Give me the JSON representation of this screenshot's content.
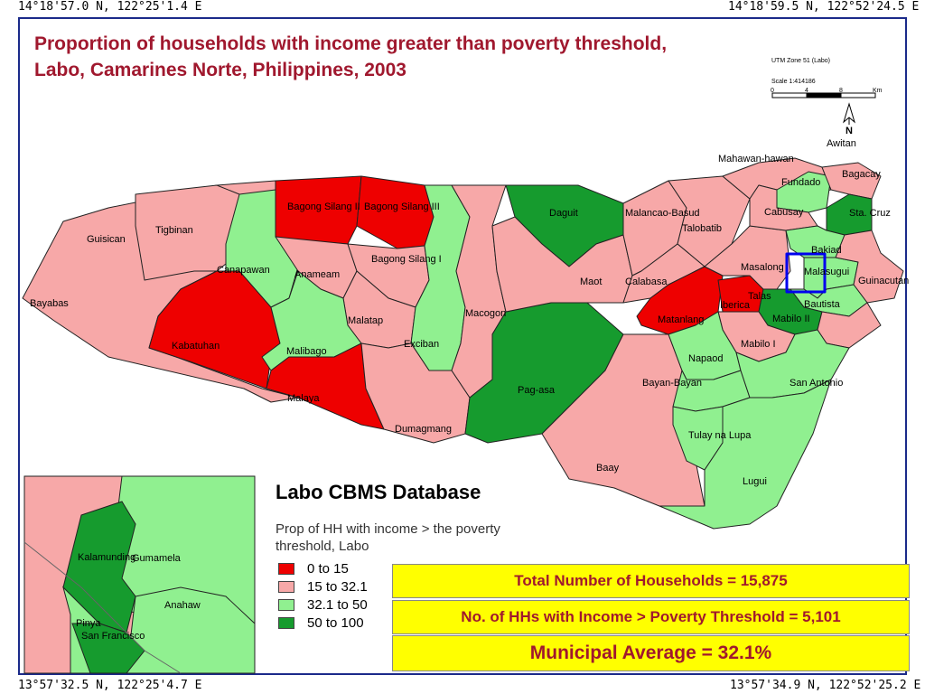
{
  "coords": {
    "top_left": "14°18'57.0 N, 122°25'1.4 E",
    "top_right": "14°18'59.5 N, 122°52'24.5 E",
    "bottom_left": "13°57'32.5 N, 122°25'4.7 E",
    "bottom_right": "13°57'34.9 N, 122°52'25.2 E"
  },
  "title_line1": "Proportion of households with income greater than poverty threshold,",
  "title_line2": "Labo, Camarines Norte, Philippines, 2003",
  "projection": "UTM Zone 51 (Labo)",
  "scale": {
    "text": "Scale 1:414186",
    "ticks": [
      "0",
      "4",
      "8",
      "Km"
    ]
  },
  "north_arrow": "N",
  "colors": {
    "class_1": "#ee0000",
    "class_2": "#f7a8a8",
    "class_3": "#90f090",
    "class_4": "#169b2e",
    "title": "#a0182e",
    "frame": "#1b2a8a",
    "highlight": "#0000ee",
    "stat_box": "#ffff00"
  },
  "barangays": [
    "Bagong Silang II",
    "Bagong Silang III",
    "Guisican",
    "Tigbinan",
    "Bayabas",
    "Canapawan",
    "Anameam",
    "Bagong Silang I",
    "Malatap",
    "Kabatuhan",
    "Malibago",
    "Malaya",
    "Exciban",
    "Macogon",
    "Dumagmang",
    "Pag-asa",
    "Daguit",
    "Malancao-Basud",
    "Talobatib",
    "Maot",
    "Calabasa",
    "Matanlang",
    "Iberica",
    "Masalong",
    "Malasugui",
    "Mahawan-hawan",
    "Fundado",
    "Bagacay",
    "Cabusay",
    "Sta. Cruz",
    "Bakiad",
    "Awitan",
    "Guinacutan",
    "Baay",
    "Napaod",
    "Bayan-Bayan",
    "Tulay na Lupa",
    "Lugui",
    "San Antonio",
    "Mabilo I",
    "Mabilo II",
    "Bautista",
    "Talas",
    "Kalamunding",
    "Gumamela",
    "Anahaw",
    "Pinya",
    "San Francisco"
  ],
  "inset": [
    "Kalamunding",
    "Gumamela",
    "Anahaw",
    "Pinya",
    "San Francisco"
  ],
  "legend": {
    "title": "Labo CBMS Database",
    "subtitle": "Prop of HH with income > the poverty threshold, Labo",
    "classes": [
      {
        "label": "0 to 15",
        "color": "#ee0000"
      },
      {
        "label": "15 to 32.1",
        "color": "#f7a8a8"
      },
      {
        "label": "32.1 to 50",
        "color": "#90f090"
      },
      {
        "label": "50 to 100",
        "color": "#169b2e"
      }
    ]
  },
  "stats": {
    "total": "Total Number of Households = 15,875",
    "above": "No. of HHs with Income > Poverty Threshold = 5,101",
    "average": "Municipal Average = 32.1%"
  }
}
